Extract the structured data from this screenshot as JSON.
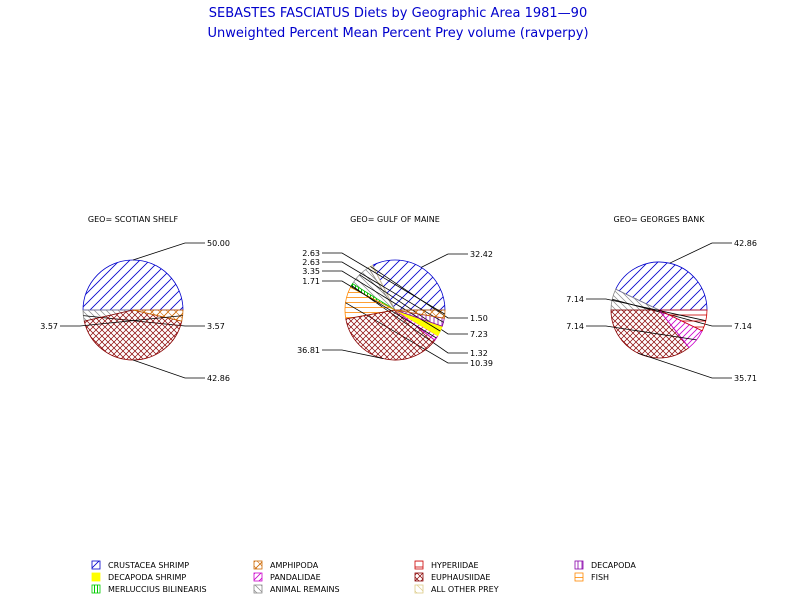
{
  "header": {
    "title": "SEBASTES FASCIATUS Diets by Geographic Area 1981—90",
    "subtitle": "Unweighted Percent Mean Percent Prey  volume (ravperpy)"
  },
  "legend": {
    "items": [
      {
        "label": "CRUSTACEA SHRIMP",
        "color": "#0000cc",
        "pattern": "crustacea"
      },
      {
        "label": "AMPHIPODA",
        "color": "#cc6600",
        "pattern": "amphipoda"
      },
      {
        "label": "HYPERIIDAE",
        "color": "#cc0000",
        "pattern": "hyperiidae"
      },
      {
        "label": "DECAPODA",
        "color": "#8800aa",
        "pattern": "decapoda"
      },
      {
        "label": "DECAPODA SHRIMP",
        "color": "#ffff00",
        "pattern": "decshrimp"
      },
      {
        "label": "PANDALIDAE",
        "color": "#cc00cc",
        "pattern": "pandalidae"
      },
      {
        "label": "EUPHAUSIIDAE",
        "color": "#880000",
        "pattern": "euphausiidae"
      },
      {
        "label": "FISH",
        "color": "#ff8800",
        "pattern": "fish"
      },
      {
        "label": "MERLUCCIUS BILINEARIS",
        "color": "#00cc00",
        "pattern": "merluccius"
      },
      {
        "label": "ANIMAL REMAINS",
        "color": "#888888",
        "pattern": "animal"
      },
      {
        "label": "ALL OTHER PREY",
        "color": "#ddcc88",
        "pattern": "other"
      }
    ]
  },
  "chart_data": [
    {
      "type": "pie",
      "title": "GEO= SCOTIAN SHELF",
      "slices": [
        {
          "category": "CRUSTACEA SHRIMP",
          "value": 50.0,
          "label": "50.00"
        },
        {
          "category": "ANIMAL REMAINS",
          "value": 3.57,
          "label": "3.57"
        },
        {
          "category": "EUPHAUSIIDAE",
          "value": 42.86,
          "label": "42.86"
        },
        {
          "category": "AMPHIPODA",
          "value": 3.57,
          "label": "3.57"
        }
      ]
    },
    {
      "type": "pie",
      "title": "GEO= GULF OF MAINE",
      "slices": [
        {
          "category": "CRUSTACEA SHRIMP",
          "value": 32.42,
          "label": "32.42"
        },
        {
          "category": "ALL OTHER PREY",
          "value": 1.5,
          "label": "1.50"
        },
        {
          "category": "ANIMAL REMAINS",
          "value": 7.23,
          "label": "7.23"
        },
        {
          "category": "MERLUCCIUS BILINEARIS",
          "value": 1.32,
          "label": "1.32"
        },
        {
          "category": "FISH",
          "value": 10.39,
          "label": "10.39"
        },
        {
          "category": "EUPHAUSIIDAE",
          "value": 36.81,
          "label": "36.81"
        },
        {
          "category": "PANDALIDAE",
          "value": 1.71,
          "label": "1.71"
        },
        {
          "category": "DECAPODA SHRIMP",
          "value": 3.35,
          "label": "3.35"
        },
        {
          "category": "DECAPODA",
          "value": 2.63,
          "label": "2.63"
        },
        {
          "category": "AMPHIPODA",
          "value": 2.63,
          "label": "2.63"
        }
      ]
    },
    {
      "type": "pie",
      "title": "GEO= GEORGES BANK",
      "slices": [
        {
          "category": "CRUSTACEA SHRIMP",
          "value": 42.86,
          "label": "42.86"
        },
        {
          "category": "ANIMAL REMAINS",
          "value": 7.14,
          "label": "7.14"
        },
        {
          "category": "EUPHAUSIIDAE",
          "value": 35.71,
          "label": "35.71"
        },
        {
          "category": "PANDALIDAE",
          "value": 7.14,
          "label": "7.14"
        },
        {
          "category": "HYPERIIDAE",
          "value": 7.14,
          "label": "7.14"
        }
      ]
    }
  ]
}
